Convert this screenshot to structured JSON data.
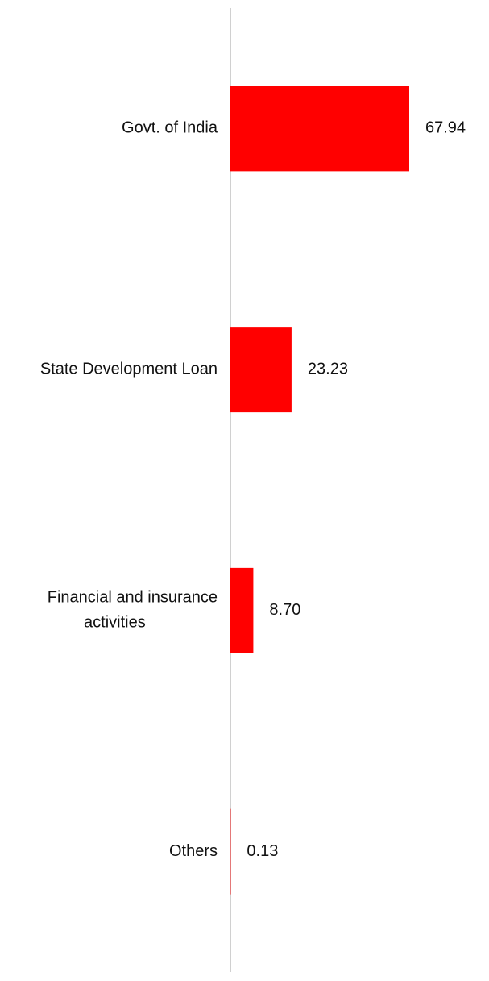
{
  "chart_data": {
    "type": "hbar",
    "categories": [
      "Govt. of India",
      "State Development Loan",
      "Financial and insurance activities",
      "Others"
    ],
    "values": [
      67.94,
      23.23,
      8.7,
      0.13
    ],
    "value_labels": [
      "67.94",
      "23.23",
      "8.70",
      "0.13"
    ],
    "color": "#ff0000"
  }
}
